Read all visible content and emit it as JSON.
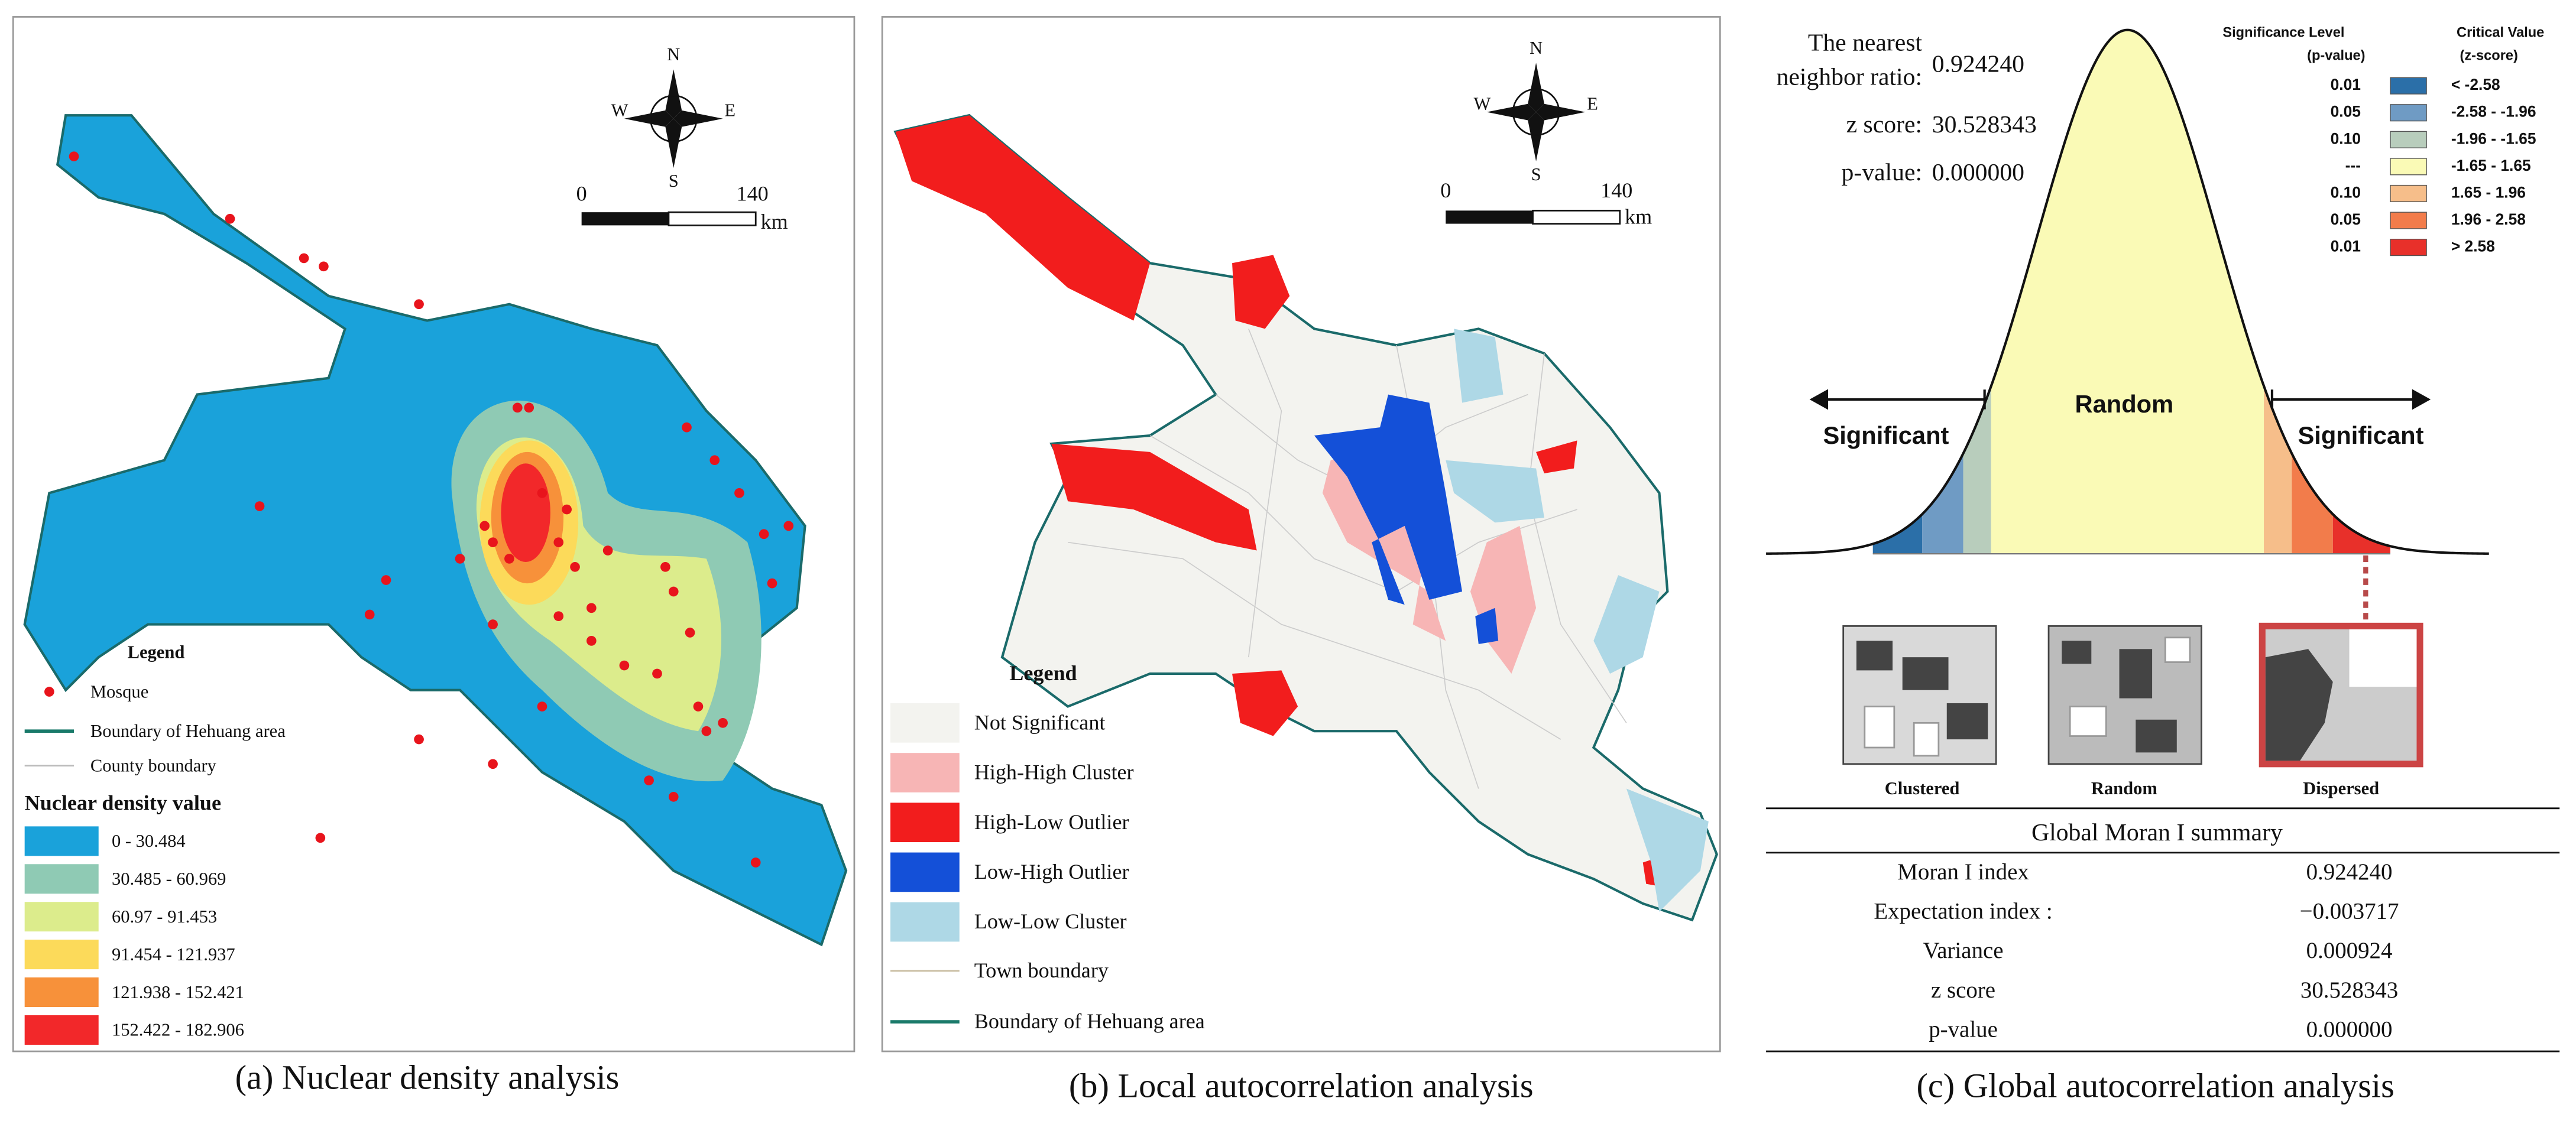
{
  "panel_a": {
    "caption": "(a) Nuclear density analysis",
    "compass": {
      "n": "N",
      "s": "S",
      "e": "E",
      "w": "W"
    },
    "scale": {
      "start": "0",
      "end": "140",
      "unit": "km"
    },
    "legend": {
      "title": "Legend",
      "symbol_items": [
        "Mosque",
        "Boundary of Hehuang area",
        "County boundary"
      ],
      "density_title": "Nuclear density value",
      "classes": [
        {
          "label": "0 - 30.484",
          "color": "#1aa2da"
        },
        {
          "label": "30.485 - 60.969",
          "color": "#8fcab4"
        },
        {
          "label": "60.97 - 91.453",
          "color": "#dcec8c"
        },
        {
          "label": "91.454 - 121.937",
          "color": "#fcda5a"
        },
        {
          "label": "121.938 - 152.421",
          "color": "#f7913a"
        },
        {
          "label": "152.422 - 182.906",
          "color": "#f2282a"
        }
      ]
    }
  },
  "panel_b": {
    "caption": "(b) Local autocorrelation analysis",
    "compass": {
      "n": "N",
      "s": "S",
      "e": "E",
      "w": "W"
    },
    "scale": {
      "start": "0",
      "end": "140",
      "unit": "km"
    },
    "legend": {
      "title": "Legend",
      "classes": [
        {
          "label": "Not Significant",
          "color": "#f3f3ef"
        },
        {
          "label": "High-High Cluster",
          "color": "#f7b5b5"
        },
        {
          "label": "High-Low Outlier",
          "color": "#f21d1d"
        },
        {
          "label": "Low-High Outlier",
          "color": "#1450d8"
        },
        {
          "label": "Low-Low Cluster",
          "color": "#aed8e6"
        }
      ],
      "line_items": [
        "Town boundary",
        "Boundary of Hehuang area"
      ]
    }
  },
  "panel_c": {
    "caption": "(c) Global autocorrelation analysis",
    "stats": {
      "ratio_label_1": "The nearest",
      "ratio_label_2": "neighbor ratio:",
      "ratio": "0.924240",
      "z_label": "z score:",
      "z": "30.528343",
      "p_label": "p-value:",
      "p": "0.000000"
    },
    "curve": {
      "center": "Random",
      "left": "Significant",
      "right": "Significant"
    },
    "significance": {
      "p_header_1": "Significance Level",
      "p_header_2": "(p-value)",
      "z_header_1": "Critical Value",
      "z_header_2": "(z-score)",
      "rows": [
        {
          "p": "0.01",
          "z": "< -2.58",
          "color": "#2b6fa8"
        },
        {
          "p": "0.05",
          "z": "-2.58 - -1.96",
          "color": "#6f9bc4"
        },
        {
          "p": "0.10",
          "z": "-1.96 - -1.65",
          "color": "#b8cdbc"
        },
        {
          "p": "---",
          "z": "-1.65 - 1.65",
          "color": "#fafab6"
        },
        {
          "p": "0.10",
          "z": "1.65 - 1.96",
          "color": "#f6be8a"
        },
        {
          "p": "0.05",
          "z": "1.96 - 2.58",
          "color": "#f27c4b"
        },
        {
          "p": "0.01",
          "z": "> 2.58",
          "color": "#e8302a"
        }
      ]
    },
    "patterns": [
      "Clustered",
      "Random",
      "Dispersed"
    ],
    "table": {
      "title": "Global Moran I summary",
      "rows": [
        [
          "Moran I index",
          "0.924240"
        ],
        [
          "Expectation index :",
          "−0.003717"
        ],
        [
          "Variance",
          "0.000924"
        ],
        [
          "z score",
          "30.528343"
        ],
        [
          "p-value",
          "0.000000"
        ]
      ]
    }
  }
}
